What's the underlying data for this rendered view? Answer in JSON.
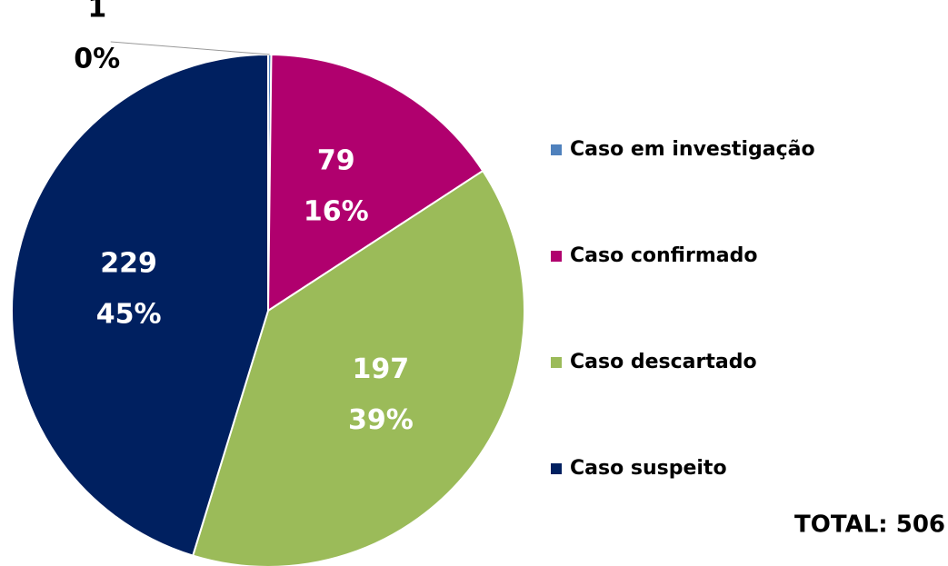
{
  "chart_data": {
    "type": "pie",
    "categories": [
      "Caso em investigação",
      "Caso confirmado",
      "Caso descartado",
      "Caso suspeito"
    ],
    "values": [
      1,
      79,
      197,
      229
    ],
    "percent_labels": [
      "0%",
      "16%",
      "39%",
      "45%"
    ],
    "colors": [
      "#4f81bd",
      "#b0006e",
      "#9bbb59",
      "#002060"
    ],
    "legend": "right",
    "total_label": "TOTAL: 506"
  }
}
